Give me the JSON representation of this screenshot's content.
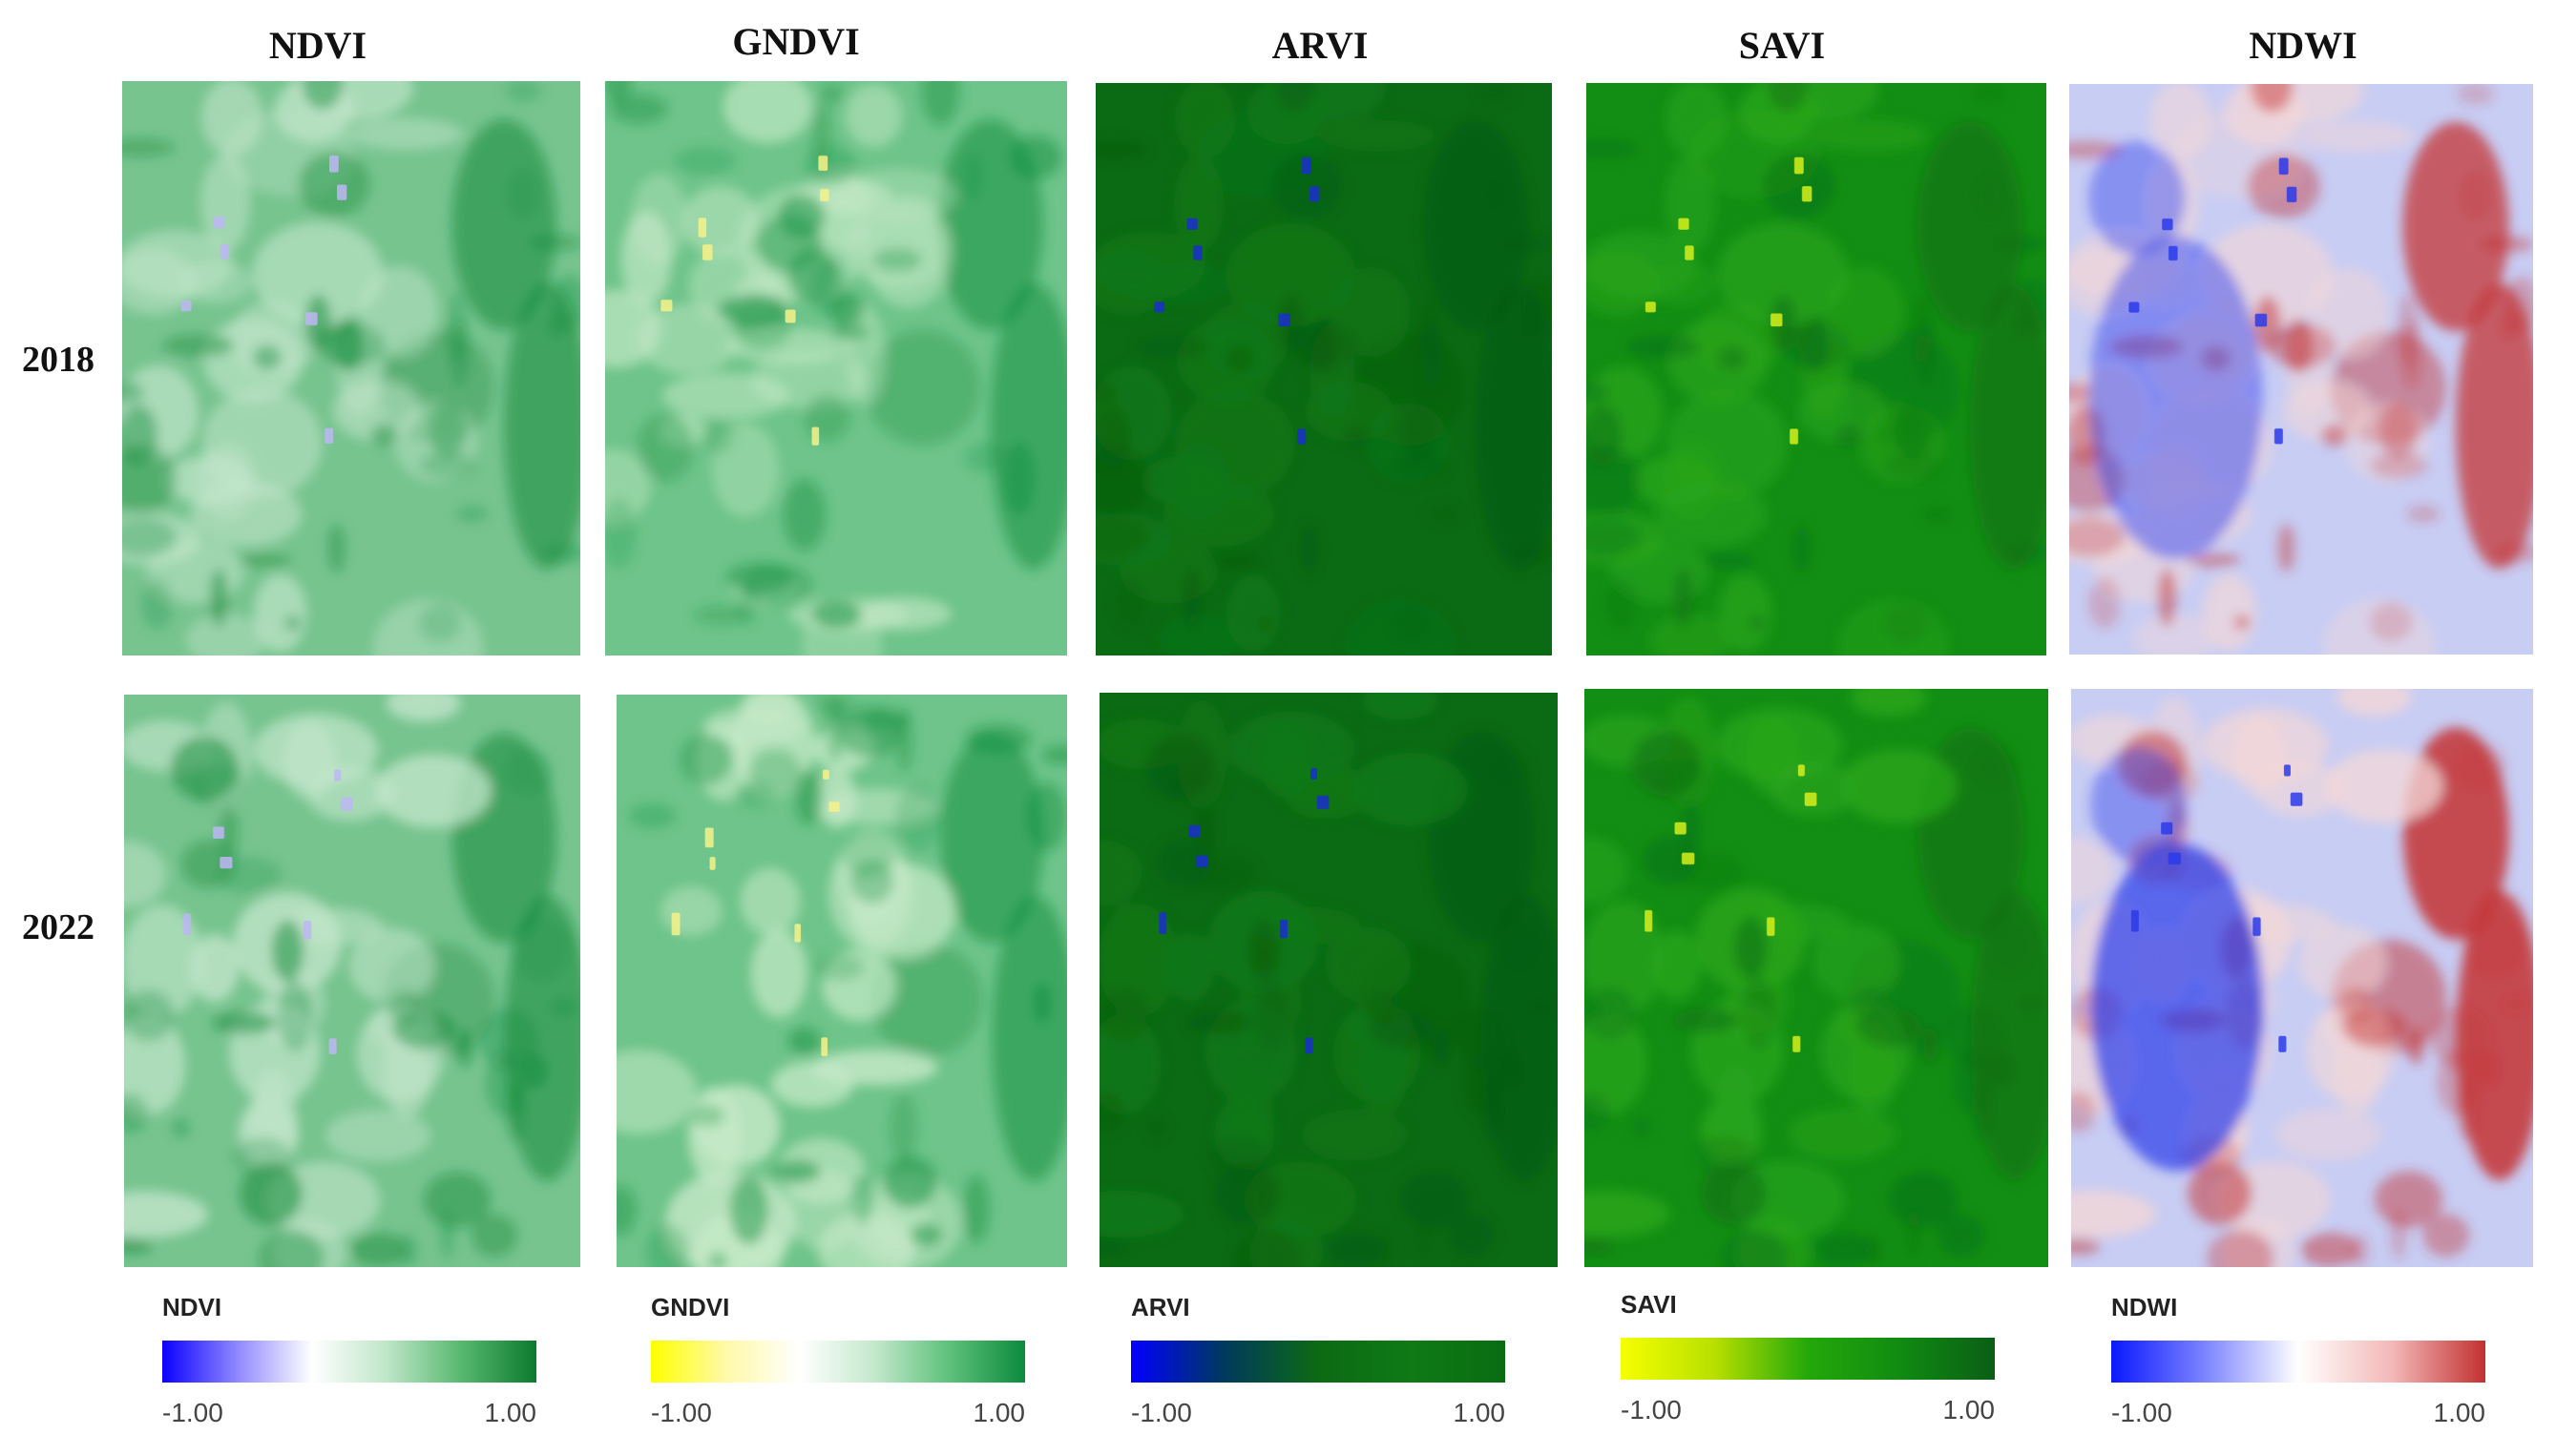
{
  "columns": [
    {
      "title": "NDVI"
    },
    {
      "title": "GNDVI"
    },
    {
      "title": "ARVI"
    },
    {
      "title": "SAVI"
    },
    {
      "title": "NDWI"
    }
  ],
  "rows": [
    {
      "year": "2018"
    },
    {
      "year": "2022"
    }
  ],
  "legends": [
    {
      "title": "NDVI",
      "min": "-1.00",
      "max": "1.00",
      "colors": [
        "#0b00ff",
        "#8f88ff",
        "#ffffff",
        "#bfe6c8",
        "#56b86e",
        "#0b7a2c"
      ]
    },
    {
      "title": "GNDVI",
      "min": "-1.00",
      "max": "1.00",
      "colors": [
        "#ffff00",
        "#fff9a8",
        "#ffffff",
        "#c2e8cb",
        "#5cc07a",
        "#0d8a3c"
      ]
    },
    {
      "title": "ARVI",
      "min": "-1.00",
      "max": "1.00",
      "colors": [
        "#0000ff",
        "#003a5c",
        "#0c6a14",
        "#0f7a16",
        "#0a6c12"
      ]
    },
    {
      "title": "SAVI",
      "min": "-1.00",
      "max": "1.00",
      "colors": [
        "#f5ff00",
        "#b8e000",
        "#23a80a",
        "#118a12",
        "#0a5e14"
      ]
    },
    {
      "title": "NDWI",
      "min": "-1.00",
      "max": "1.00",
      "colors": [
        "#0a18ff",
        "#7c84ff",
        "#ffffff",
        "#f4b8b8",
        "#c23030"
      ]
    }
  ],
  "panel_palettes": {
    "NDVI": {
      "base": "#77c48f",
      "light": "#c4e6cc",
      "dark": "#118a3a",
      "spot": "#bdb6f5"
    },
    "GNDVI": {
      "base": "#6ec48a",
      "light": "#c8eac8",
      "dark": "#129040",
      "spot": "#f6f28a"
    },
    "ARVI": {
      "base": "#0b6a14",
      "light": "#0f7a18",
      "dark": "#085a10",
      "spot": "#1a2ed0"
    },
    "SAVI": {
      "base": "#138e14",
      "light": "#2aa61c",
      "dark": "#0d6c14",
      "spot": "#d7f01c"
    },
    "NDWI": {
      "base": "#c8cdf4",
      "light": "#f3d7d7",
      "dark": "#c43434",
      "spot": "#2a3aea"
    }
  }
}
